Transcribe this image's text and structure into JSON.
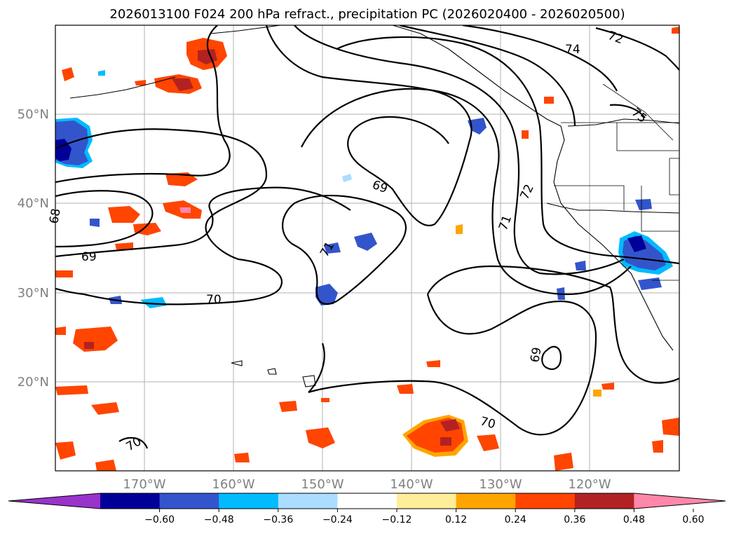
{
  "title": "2026013100 F024 200 hPa refract., precipitation PC (2026020400 - 2026020500)",
  "lat_labels": [
    "50°N",
    "40°N",
    "30°N",
    "20°N"
  ],
  "lon_labels": [
    "170°W",
    "160°W",
    "150°W",
    "140°W",
    "130°W",
    "120°W"
  ],
  "contour_labels": [
    "72",
    "74",
    "75",
    "69",
    "72",
    "71",
    "69",
    "68",
    "70",
    "69",
    "70",
    "70",
    "71"
  ],
  "colorbar": {
    "ticks": [
      "−0.60",
      "−0.48",
      "−0.36",
      "−0.24",
      "−0.12",
      "0.12",
      "0.24",
      "0.36",
      "0.48",
      "0.60"
    ],
    "colors": [
      "#9933cc",
      "#000099",
      "#3355cc",
      "#00bbff",
      "#aaddff",
      "#ffffff",
      "#ffee99",
      "#ffa500",
      "#ff4500",
      "#b22222",
      "#ff88aa"
    ]
  }
}
